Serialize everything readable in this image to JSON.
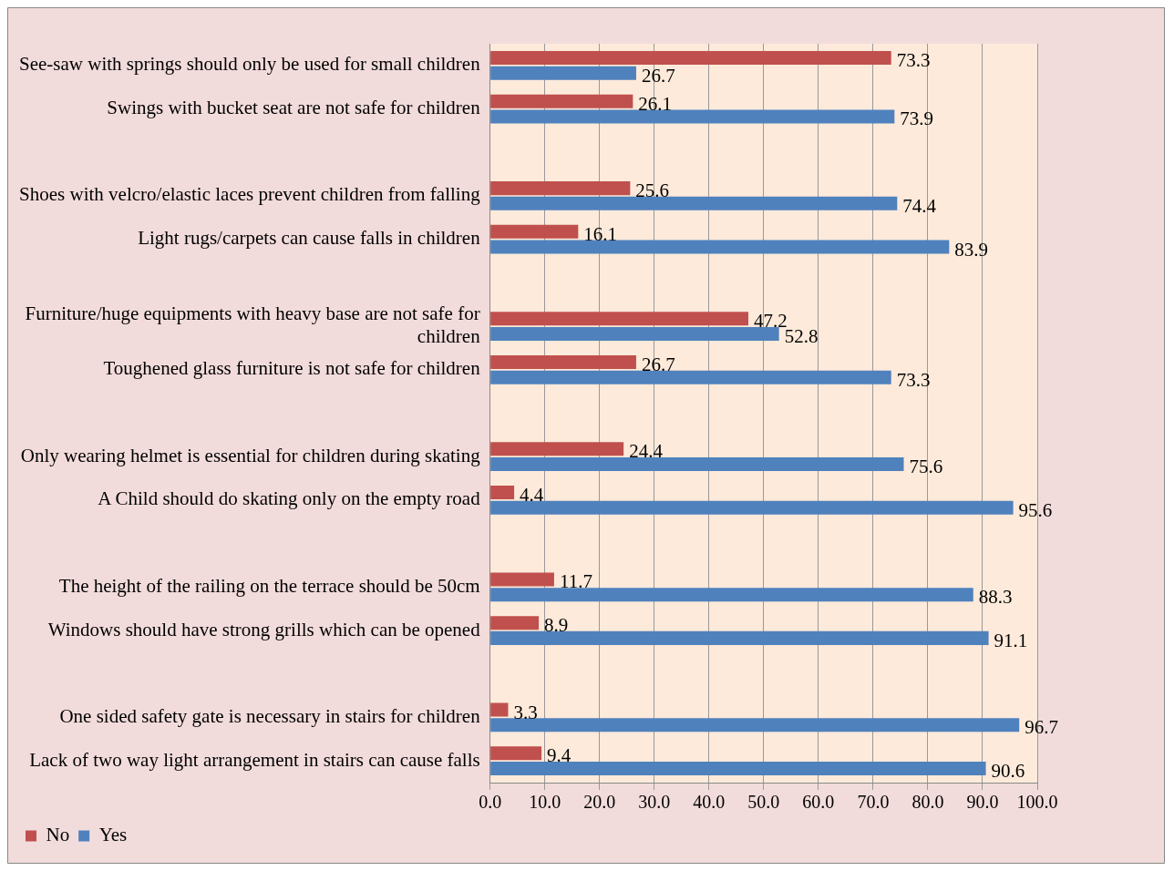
{
  "chart_data": {
    "type": "bar",
    "orientation": "horizontal",
    "categories": [
      "See-saw with springs should only be used for small children",
      "Swings with bucket seat are not safe for children",
      null,
      "Shoes with velcro/elastic laces prevent children from falling",
      "Light rugs/carpets can cause falls in children",
      null,
      "Furniture/huge equipments with heavy base are not safe for children",
      "Toughened glass furniture is not safe for children",
      null,
      "Only wearing helmet is essential for children during skating",
      "A Child should do skating only on the empty road",
      null,
      "The height of the railing on the terrace should be 50cm",
      "Windows should have strong grills which can be opened",
      null,
      "One sided safety gate is necessary in stairs for children",
      "Lack of two way light arrangement in stairs can cause falls"
    ],
    "series": [
      {
        "name": "No",
        "color": "#c0504d",
        "values": [
          73.3,
          26.1,
          null,
          25.6,
          16.1,
          null,
          47.2,
          26.7,
          null,
          24.4,
          4.4,
          null,
          11.7,
          8.9,
          null,
          3.3,
          9.4
        ]
      },
      {
        "name": "Yes",
        "color": "#4f81bd",
        "values": [
          26.7,
          73.9,
          null,
          74.4,
          83.9,
          null,
          52.8,
          73.3,
          null,
          75.6,
          95.6,
          null,
          88.3,
          91.1,
          null,
          96.7,
          90.6
        ]
      }
    ],
    "xlim": [
      0,
      100
    ],
    "xticks": [
      {
        "value": 0,
        "label": "0.0"
      },
      {
        "value": 10,
        "label": "10.0"
      },
      {
        "value": 20,
        "label": "20.0"
      },
      {
        "value": 30,
        "label": "30.0"
      },
      {
        "value": 40,
        "label": "40.0"
      },
      {
        "value": 50,
        "label": "50.0"
      },
      {
        "value": 60,
        "label": "60.0"
      },
      {
        "value": 70,
        "label": "70.0"
      },
      {
        "value": 80,
        "label": "80.0"
      },
      {
        "value": 90,
        "label": "90.0"
      },
      {
        "value": 100,
        "label": "100.0"
      }
    ],
    "grid": "x",
    "legend": "bottom left",
    "data_labels": true
  }
}
